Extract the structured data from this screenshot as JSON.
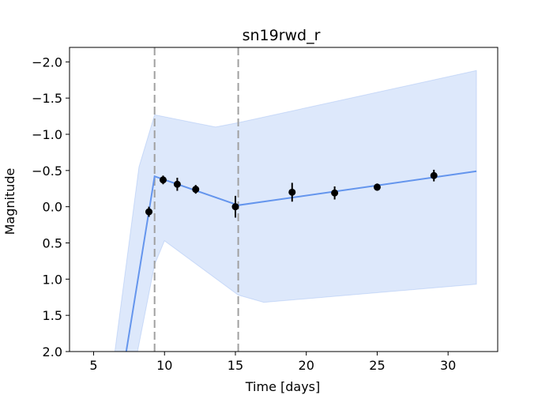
{
  "chart_data": {
    "type": "line",
    "title": "sn19rwd_r",
    "xlabel": "Time [days]",
    "ylabel": "Magnitude",
    "xlim": [
      3.3,
      33.5
    ],
    "ylim": [
      2.0,
      -2.2
    ],
    "y_inverted": true,
    "grid": false,
    "x_ticks": [
      5,
      10,
      15,
      20,
      25,
      30
    ],
    "x_tick_labels": [
      "5",
      "10",
      "15",
      "20",
      "25",
      "30"
    ],
    "y_ticks": [
      -2.0,
      -1.5,
      -1.0,
      -0.5,
      0.0,
      0.5,
      1.0,
      1.5,
      2.0
    ],
    "y_tick_labels": [
      "−2.0",
      "−1.5",
      "−1.0",
      "−0.5",
      "0.0",
      "0.5",
      "1.0",
      "1.5",
      "2.0"
    ],
    "vertical_lines": [
      9.3,
      15.2
    ],
    "observations": [
      {
        "x": 8.9,
        "y": 0.07,
        "err": 0.07
      },
      {
        "x": 9.9,
        "y": -0.37,
        "err": 0.06
      },
      {
        "x": 10.9,
        "y": -0.31,
        "err": 0.09
      },
      {
        "x": 12.2,
        "y": -0.24,
        "err": 0.06
      },
      {
        "x": 15.0,
        "y": 0.0,
        "err": 0.15
      },
      {
        "x": 19.0,
        "y": -0.2,
        "err": 0.13
      },
      {
        "x": 22.0,
        "y": -0.19,
        "err": 0.09
      },
      {
        "x": 25.0,
        "y": -0.27,
        "err": 0.05
      },
      {
        "x": 29.0,
        "y": -0.43,
        "err": 0.08
      }
    ],
    "model_line": {
      "x": [
        7.3,
        9.3,
        15.2,
        32.0
      ],
      "y": [
        2.0,
        -0.42,
        -0.02,
        -0.49
      ]
    },
    "model_band": {
      "upper": {
        "x": [
          6.5,
          8.2,
          9.3,
          13.6,
          15.2,
          32.0
        ],
        "y": [
          2.0,
          -0.55,
          -1.27,
          -1.1,
          -1.16,
          -1.88
        ]
      },
      "lower": {
        "x": [
          32.0,
          17.0,
          15.2,
          10.0,
          9.3,
          8.1
        ],
        "y": [
          1.07,
          1.32,
          1.22,
          0.47,
          0.8,
          2.0
        ]
      }
    },
    "colors": {
      "line": "#6495ed",
      "band": "#6495ed",
      "points": "#000000",
      "vlines": "#a0a0a0"
    }
  }
}
